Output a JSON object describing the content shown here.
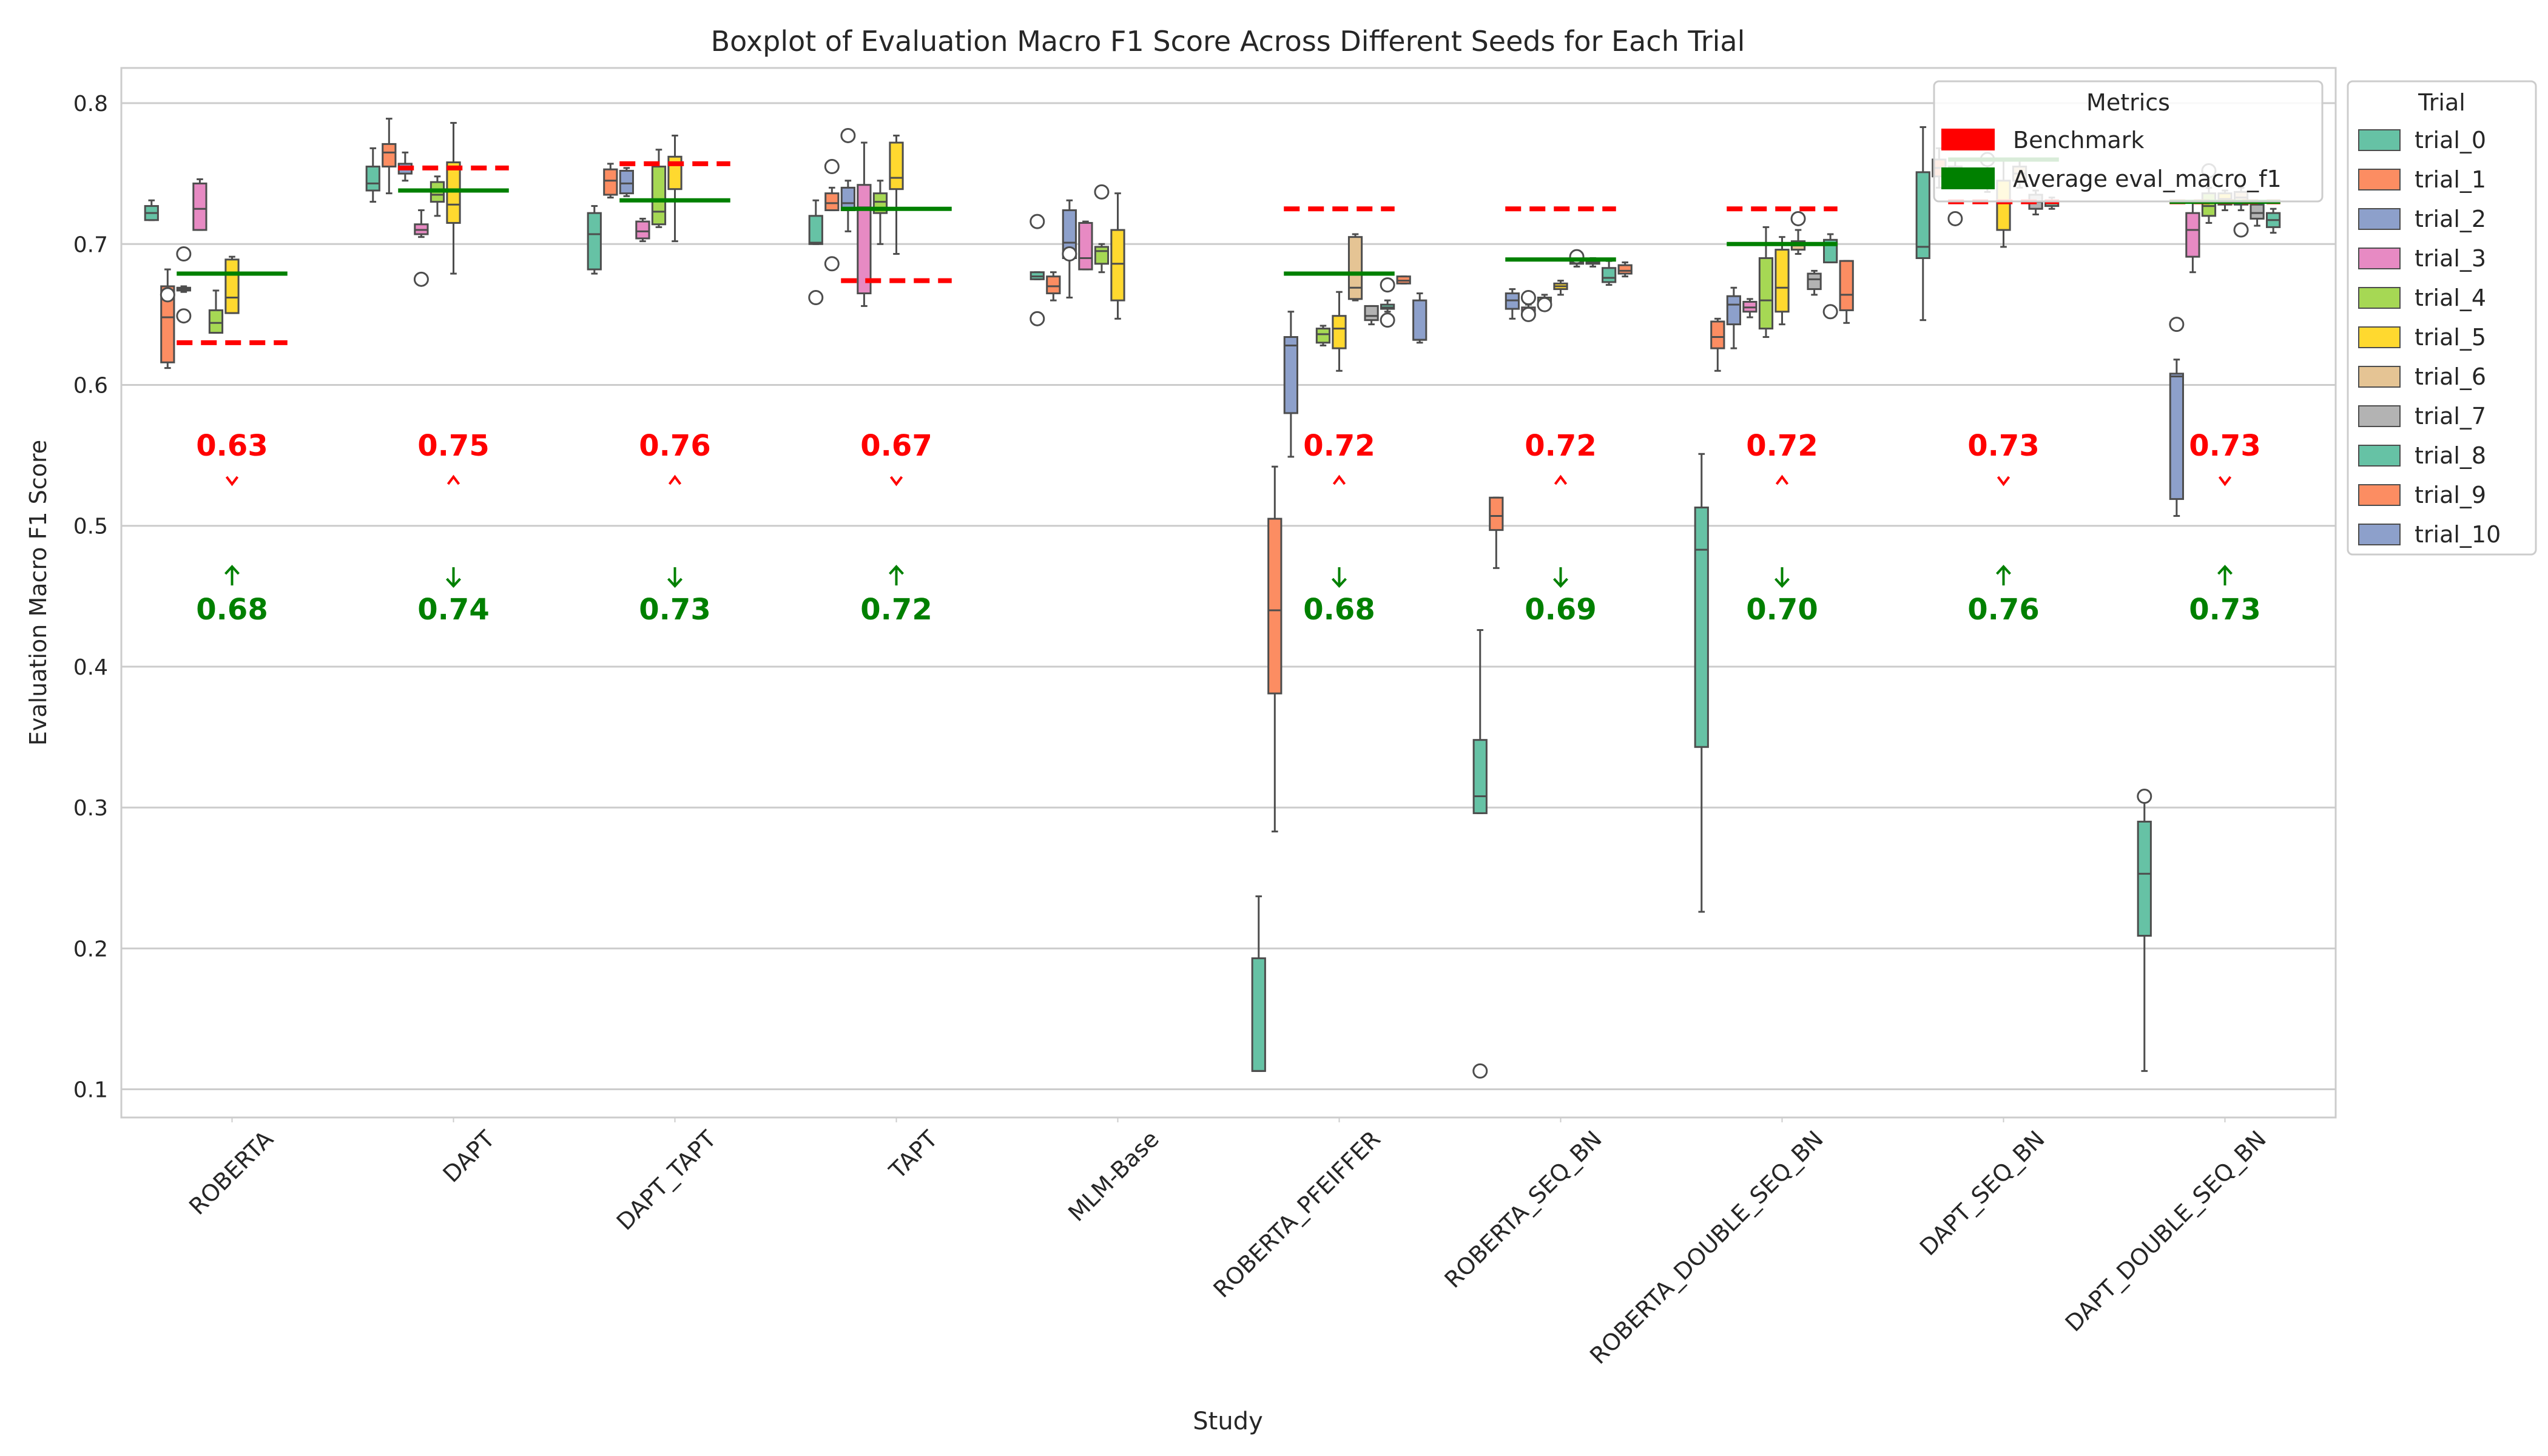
{
  "chart_data": {
    "type": "box",
    "title": "Boxplot of Evaluation Macro F1 Score Across Different Seeds for Each Trial",
    "xlabel": "Study",
    "ylabel": "Evaluation Macro F1 Score",
    "ylim": [
      0.08,
      0.825
    ],
    "yticks": [
      0.1,
      0.2,
      0.3,
      0.4,
      0.5,
      0.6,
      0.7,
      0.8
    ],
    "ytick_labels": [
      "0.1",
      "0.2",
      "0.3",
      "0.4",
      "0.5",
      "0.6",
      "0.7",
      "0.8"
    ],
    "grid": "horizontal",
    "categories": [
      "ROBERTA",
      "DAPT",
      "DAPT_TAPT",
      "TAPT",
      "MLM-Base",
      "ROBERTA_PFEIFFER",
      "ROBERTA_SEQ_BN",
      "ROBERTA_DOUBLE_SEQ_BN",
      "DAPT_SEQ_BN",
      "DAPT_DOUBLE_SEQ_BN"
    ],
    "trial_colors": [
      "#66c2a5",
      "#fc8d62",
      "#8da0cb",
      "#e78ac3",
      "#a6d854",
      "#ffd92f",
      "#e5c494",
      "#b3b3b3",
      "#66c2a5",
      "#fc8d62",
      "#8da0cb"
    ],
    "legend_trial": {
      "title": "Trial",
      "position": "outside-right",
      "items": [
        "trial_0",
        "trial_1",
        "trial_2",
        "trial_3",
        "trial_4",
        "trial_5",
        "trial_6",
        "trial_7",
        "trial_8",
        "trial_9",
        "trial_10"
      ]
    },
    "legend_metrics": {
      "title": "Metrics",
      "position": "top-right",
      "items": [
        {
          "label": "Benchmark",
          "color": "#ff0000"
        },
        {
          "label": "Average eval_macro_f1",
          "color": "#008000"
        }
      ]
    },
    "benchmark_color": "#ff0000",
    "average_color": "#008000",
    "benchmark": [
      0.63,
      0.754,
      0.757,
      0.674,
      null,
      0.725,
      0.725,
      0.725,
      0.73,
      0.73
    ],
    "average": [
      0.679,
      0.738,
      0.731,
      0.725,
      null,
      0.679,
      0.689,
      0.7,
      0.76,
      0.73
    ],
    "benchmark_labels": [
      "0.63",
      "0.75",
      "0.76",
      "0.67",
      "",
      "0.72",
      "0.72",
      "0.72",
      "0.73",
      "0.73"
    ],
    "average_labels": [
      "0.68",
      "0.74",
      "0.73",
      "0.72",
      "",
      "0.68",
      "0.69",
      "0.70",
      "0.76",
      "0.73"
    ],
    "arrows": [
      {
        "benchmark": "down",
        "average": "up"
      },
      {
        "benchmark": "up",
        "average": "down"
      },
      {
        "benchmark": "up",
        "average": "down"
      },
      {
        "benchmark": "down",
        "average": "up"
      },
      null,
      {
        "benchmark": "up",
        "average": "down"
      },
      {
        "benchmark": "up",
        "average": "down"
      },
      {
        "benchmark": "up",
        "average": "down"
      },
      {
        "benchmark": "down",
        "average": "up"
      },
      {
        "benchmark": "down",
        "average": "up"
      }
    ],
    "boxes": [
      {
        "study": 0,
        "trial": 0,
        "q1": 0.717,
        "med": 0.722,
        "q3": 0.727,
        "lo": 0.717,
        "hi": 0.731,
        "fliers": []
      },
      {
        "study": 0,
        "trial": 1,
        "q1": 0.616,
        "med": 0.648,
        "q3": 0.67,
        "lo": 0.612,
        "hi": 0.682,
        "fliers": [
          0.664
        ]
      },
      {
        "study": 0,
        "trial": 2,
        "q1": 0.667,
        "med": 0.668,
        "q3": 0.669,
        "lo": 0.666,
        "hi": 0.67,
        "fliers": [
          0.649,
          0.693
        ]
      },
      {
        "study": 0,
        "trial": 3,
        "q1": 0.71,
        "med": 0.725,
        "q3": 0.743,
        "lo": 0.71,
        "hi": 0.746,
        "fliers": []
      },
      {
        "study": 0,
        "trial": 4,
        "q1": 0.637,
        "med": 0.644,
        "q3": 0.653,
        "lo": 0.637,
        "hi": 0.667,
        "fliers": []
      },
      {
        "study": 0,
        "trial": 5,
        "q1": 0.651,
        "med": 0.662,
        "q3": 0.689,
        "lo": 0.651,
        "hi": 0.691,
        "fliers": []
      },
      {
        "study": 1,
        "trial": 0,
        "q1": 0.738,
        "med": 0.743,
        "q3": 0.755,
        "lo": 0.73,
        "hi": 0.768,
        "fliers": []
      },
      {
        "study": 1,
        "trial": 1,
        "q1": 0.755,
        "med": 0.765,
        "q3": 0.771,
        "lo": 0.736,
        "hi": 0.789,
        "fliers": []
      },
      {
        "study": 1,
        "trial": 2,
        "q1": 0.75,
        "med": 0.755,
        "q3": 0.757,
        "lo": 0.745,
        "hi": 0.765,
        "fliers": []
      },
      {
        "study": 1,
        "trial": 3,
        "q1": 0.707,
        "med": 0.71,
        "q3": 0.714,
        "lo": 0.705,
        "hi": 0.724,
        "fliers": [
          0.675
        ]
      },
      {
        "study": 1,
        "trial": 4,
        "q1": 0.73,
        "med": 0.735,
        "q3": 0.744,
        "lo": 0.72,
        "hi": 0.748,
        "fliers": []
      },
      {
        "study": 1,
        "trial": 5,
        "q1": 0.715,
        "med": 0.728,
        "q3": 0.758,
        "lo": 0.679,
        "hi": 0.786,
        "fliers": []
      },
      {
        "study": 2,
        "trial": 0,
        "q1": 0.682,
        "med": 0.707,
        "q3": 0.722,
        "lo": 0.679,
        "hi": 0.727,
        "fliers": []
      },
      {
        "study": 2,
        "trial": 1,
        "q1": 0.735,
        "med": 0.745,
        "q3": 0.753,
        "lo": 0.733,
        "hi": 0.757,
        "fliers": []
      },
      {
        "study": 2,
        "trial": 2,
        "q1": 0.736,
        "med": 0.743,
        "q3": 0.752,
        "lo": 0.734,
        "hi": 0.754,
        "fliers": []
      },
      {
        "study": 2,
        "trial": 3,
        "q1": 0.704,
        "med": 0.709,
        "q3": 0.716,
        "lo": 0.702,
        "hi": 0.718,
        "fliers": []
      },
      {
        "study": 2,
        "trial": 4,
        "q1": 0.714,
        "med": 0.723,
        "q3": 0.755,
        "lo": 0.712,
        "hi": 0.767,
        "fliers": []
      },
      {
        "study": 2,
        "trial": 5,
        "q1": 0.739,
        "med": 0.757,
        "q3": 0.762,
        "lo": 0.702,
        "hi": 0.777,
        "fliers": []
      },
      {
        "study": 3,
        "trial": 0,
        "q1": 0.7,
        "med": 0.701,
        "q3": 0.72,
        "lo": 0.7,
        "hi": 0.731,
        "fliers": [
          0.662
        ]
      },
      {
        "study": 3,
        "trial": 1,
        "q1": 0.724,
        "med": 0.729,
        "q3": 0.736,
        "lo": 0.724,
        "hi": 0.74,
        "fliers": [
          0.686,
          0.755
        ]
      },
      {
        "study": 3,
        "trial": 2,
        "q1": 0.724,
        "med": 0.729,
        "q3": 0.74,
        "lo": 0.709,
        "hi": 0.745,
        "fliers": [
          0.777
        ]
      },
      {
        "study": 3,
        "trial": 3,
        "q1": 0.665,
        "med": 0.726,
        "q3": 0.742,
        "lo": 0.656,
        "hi": 0.772,
        "fliers": []
      },
      {
        "study": 3,
        "trial": 4,
        "q1": 0.722,
        "med": 0.73,
        "q3": 0.736,
        "lo": 0.7,
        "hi": 0.745,
        "fliers": []
      },
      {
        "study": 3,
        "trial": 5,
        "q1": 0.739,
        "med": 0.747,
        "q3": 0.772,
        "lo": 0.693,
        "hi": 0.777,
        "fliers": []
      },
      {
        "study": 4,
        "trial": 0,
        "q1": 0.675,
        "med": 0.677,
        "q3": 0.68,
        "lo": 0.675,
        "hi": 0.68,
        "fliers": [
          0.647,
          0.716
        ]
      },
      {
        "study": 4,
        "trial": 1,
        "q1": 0.665,
        "med": 0.67,
        "q3": 0.677,
        "lo": 0.66,
        "hi": 0.68,
        "fliers": []
      },
      {
        "study": 4,
        "trial": 2,
        "q1": 0.69,
        "med": 0.701,
        "q3": 0.724,
        "lo": 0.662,
        "hi": 0.731,
        "fliers": [
          0.693
        ]
      },
      {
        "study": 4,
        "trial": 3,
        "q1": 0.682,
        "med": 0.69,
        "q3": 0.715,
        "lo": 0.682,
        "hi": 0.716,
        "fliers": []
      },
      {
        "study": 4,
        "trial": 4,
        "q1": 0.686,
        "med": 0.695,
        "q3": 0.698,
        "lo": 0.68,
        "hi": 0.7,
        "fliers": [
          0.737
        ]
      },
      {
        "study": 4,
        "trial": 5,
        "q1": 0.66,
        "med": 0.686,
        "q3": 0.71,
        "lo": 0.647,
        "hi": 0.736,
        "fliers": []
      },
      {
        "study": 5,
        "trial": 0,
        "q1": 0.113,
        "med": 0.113,
        "q3": 0.193,
        "lo": 0.113,
        "hi": 0.237,
        "fliers": []
      },
      {
        "study": 5,
        "trial": 1,
        "q1": 0.381,
        "med": 0.44,
        "q3": 0.505,
        "lo": 0.283,
        "hi": 0.542,
        "fliers": []
      },
      {
        "study": 5,
        "trial": 2,
        "q1": 0.58,
        "med": 0.628,
        "q3": 0.634,
        "lo": 0.549,
        "hi": 0.652,
        "fliers": []
      },
      {
        "study": 5,
        "trial": 4,
        "q1": 0.63,
        "med": 0.636,
        "q3": 0.64,
        "lo": 0.628,
        "hi": 0.642,
        "fliers": []
      },
      {
        "study": 5,
        "trial": 5,
        "q1": 0.626,
        "med": 0.64,
        "q3": 0.649,
        "lo": 0.61,
        "hi": 0.666,
        "fliers": []
      },
      {
        "study": 5,
        "trial": 6,
        "q1": 0.661,
        "med": 0.669,
        "q3": 0.705,
        "lo": 0.66,
        "hi": 0.707,
        "fliers": []
      },
      {
        "study": 5,
        "trial": 7,
        "q1": 0.646,
        "med": 0.649,
        "q3": 0.656,
        "lo": 0.643,
        "hi": 0.656,
        "fliers": []
      },
      {
        "study": 5,
        "trial": 8,
        "q1": 0.654,
        "med": 0.655,
        "q3": 0.657,
        "lo": 0.652,
        "hi": 0.66,
        "fliers": [
          0.646,
          0.671
        ]
      },
      {
        "study": 5,
        "trial": 9,
        "q1": 0.672,
        "med": 0.674,
        "q3": 0.677,
        "lo": 0.672,
        "hi": 0.677,
        "fliers": []
      },
      {
        "study": 5,
        "trial": 10,
        "q1": 0.632,
        "med": 0.632,
        "q3": 0.66,
        "lo": 0.63,
        "hi": 0.665,
        "fliers": []
      },
      {
        "study": 6,
        "trial": 0,
        "q1": 0.296,
        "med": 0.308,
        "q3": 0.348,
        "lo": 0.296,
        "hi": 0.426,
        "fliers": [
          0.113
        ]
      },
      {
        "study": 6,
        "trial": 1,
        "q1": 0.497,
        "med": 0.507,
        "q3": 0.52,
        "lo": 0.47,
        "hi": 0.52,
        "fliers": []
      },
      {
        "study": 6,
        "trial": 2,
        "q1": 0.654,
        "med": 0.66,
        "q3": 0.665,
        "lo": 0.647,
        "hi": 0.668,
        "fliers": []
      },
      {
        "study": 6,
        "trial": 3,
        "q1": 0.651,
        "med": 0.653,
        "q3": 0.655,
        "lo": 0.648,
        "hi": 0.657,
        "fliers": [
          0.65,
          0.662
        ]
      },
      {
        "study": 6,
        "trial": 4,
        "q1": 0.658,
        "med": 0.66,
        "q3": 0.662,
        "lo": 0.656,
        "hi": 0.664,
        "fliers": [
          0.657
        ]
      },
      {
        "study": 6,
        "trial": 5,
        "q1": 0.668,
        "med": 0.67,
        "q3": 0.672,
        "lo": 0.664,
        "hi": 0.674,
        "fliers": []
      },
      {
        "study": 6,
        "trial": 6,
        "q1": 0.686,
        "med": 0.687,
        "q3": 0.689,
        "lo": 0.684,
        "hi": 0.69,
        "fliers": [
          0.691
        ]
      },
      {
        "study": 6,
        "trial": 7,
        "q1": 0.686,
        "med": 0.687,
        "q3": 0.689,
        "lo": 0.684,
        "hi": 0.69,
        "fliers": []
      },
      {
        "study": 6,
        "trial": 8,
        "q1": 0.673,
        "med": 0.676,
        "q3": 0.683,
        "lo": 0.671,
        "hi": 0.688,
        "fliers": []
      },
      {
        "study": 6,
        "trial": 9,
        "q1": 0.679,
        "med": 0.681,
        "q3": 0.685,
        "lo": 0.677,
        "hi": 0.687,
        "fliers": []
      },
      {
        "study": 7,
        "trial": 0,
        "q1": 0.343,
        "med": 0.483,
        "q3": 0.513,
        "lo": 0.226,
        "hi": 0.551,
        "fliers": []
      },
      {
        "study": 7,
        "trial": 1,
        "q1": 0.626,
        "med": 0.634,
        "q3": 0.645,
        "lo": 0.61,
        "hi": 0.647,
        "fliers": []
      },
      {
        "study": 7,
        "trial": 2,
        "q1": 0.643,
        "med": 0.657,
        "q3": 0.663,
        "lo": 0.626,
        "hi": 0.669,
        "fliers": []
      },
      {
        "study": 7,
        "trial": 3,
        "q1": 0.652,
        "med": 0.655,
        "q3": 0.659,
        "lo": 0.648,
        "hi": 0.661,
        "fliers": []
      },
      {
        "study": 7,
        "trial": 4,
        "q1": 0.64,
        "med": 0.66,
        "q3": 0.69,
        "lo": 0.634,
        "hi": 0.712,
        "fliers": []
      },
      {
        "study": 7,
        "trial": 5,
        "q1": 0.652,
        "med": 0.669,
        "q3": 0.696,
        "lo": 0.643,
        "hi": 0.705,
        "fliers": []
      },
      {
        "study": 7,
        "trial": 6,
        "q1": 0.696,
        "med": 0.699,
        "q3": 0.702,
        "lo": 0.693,
        "hi": 0.71,
        "fliers": [
          0.718
        ]
      },
      {
        "study": 7,
        "trial": 7,
        "q1": 0.668,
        "med": 0.675,
        "q3": 0.679,
        "lo": 0.664,
        "hi": 0.681,
        "fliers": []
      },
      {
        "study": 7,
        "trial": 8,
        "q1": 0.687,
        "med": 0.7,
        "q3": 0.703,
        "lo": 0.687,
        "hi": 0.707,
        "fliers": [
          0.652
        ]
      },
      {
        "study": 7,
        "trial": 9,
        "q1": 0.653,
        "med": 0.664,
        "q3": 0.688,
        "lo": 0.644,
        "hi": 0.688,
        "fliers": []
      },
      {
        "study": 8,
        "trial": 0,
        "q1": 0.69,
        "med": 0.698,
        "q3": 0.751,
        "lo": 0.646,
        "hi": 0.783,
        "fliers": []
      },
      {
        "study": 8,
        "trial": 1,
        "q1": 0.748,
        "med": 0.754,
        "q3": 0.76,
        "lo": 0.74,
        "hi": 0.768,
        "fliers": []
      },
      {
        "study": 8,
        "trial": 2,
        "q1": 0.749,
        "med": 0.752,
        "q3": 0.755,
        "lo": 0.745,
        "hi": 0.76,
        "fliers": [
          0.718,
          0.747
        ]
      },
      {
        "study": 8,
        "trial": 4,
        "q1": 0.742,
        "med": 0.745,
        "q3": 0.75,
        "lo": 0.737,
        "hi": 0.756,
        "fliers": [
          0.76
        ]
      },
      {
        "study": 8,
        "trial": 5,
        "q1": 0.71,
        "med": 0.73,
        "q3": 0.745,
        "lo": 0.698,
        "hi": 0.76,
        "fliers": []
      },
      {
        "study": 8,
        "trial": 6,
        "q1": 0.745,
        "med": 0.75,
        "q3": 0.755,
        "lo": 0.74,
        "hi": 0.76,
        "fliers": []
      },
      {
        "study": 8,
        "trial": 7,
        "q1": 0.725,
        "med": 0.73,
        "q3": 0.735,
        "lo": 0.721,
        "hi": 0.738,
        "fliers": []
      },
      {
        "study": 8,
        "trial": 8,
        "q1": 0.727,
        "med": 0.729,
        "q3": 0.731,
        "lo": 0.725,
        "hi": 0.733,
        "fliers": []
      },
      {
        "study": 9,
        "trial": 0,
        "q1": 0.209,
        "med": 0.253,
        "q3": 0.29,
        "lo": 0.113,
        "hi": 0.305,
        "fliers": [
          0.308
        ]
      },
      {
        "study": 9,
        "trial": 2,
        "q1": 0.519,
        "med": 0.606,
        "q3": 0.608,
        "lo": 0.507,
        "hi": 0.618,
        "fliers": [
          0.643
        ]
      },
      {
        "study": 9,
        "trial": 3,
        "q1": 0.691,
        "med": 0.71,
        "q3": 0.722,
        "lo": 0.68,
        "hi": 0.73,
        "fliers": []
      },
      {
        "study": 9,
        "trial": 4,
        "q1": 0.72,
        "med": 0.727,
        "q3": 0.736,
        "lo": 0.715,
        "hi": 0.74,
        "fliers": [
          0.752
        ]
      },
      {
        "study": 9,
        "trial": 5,
        "q1": 0.728,
        "med": 0.732,
        "q3": 0.736,
        "lo": 0.724,
        "hi": 0.738,
        "fliers": []
      },
      {
        "study": 9,
        "trial": 6,
        "q1": 0.728,
        "med": 0.733,
        "q3": 0.737,
        "lo": 0.724,
        "hi": 0.74,
        "fliers": [
          0.71
        ]
      },
      {
        "study": 9,
        "trial": 7,
        "q1": 0.718,
        "med": 0.722,
        "q3": 0.728,
        "lo": 0.713,
        "hi": 0.73,
        "fliers": []
      },
      {
        "study": 9,
        "trial": 8,
        "q1": 0.712,
        "med": 0.717,
        "q3": 0.722,
        "lo": 0.708,
        "hi": 0.725,
        "fliers": []
      }
    ]
  }
}
